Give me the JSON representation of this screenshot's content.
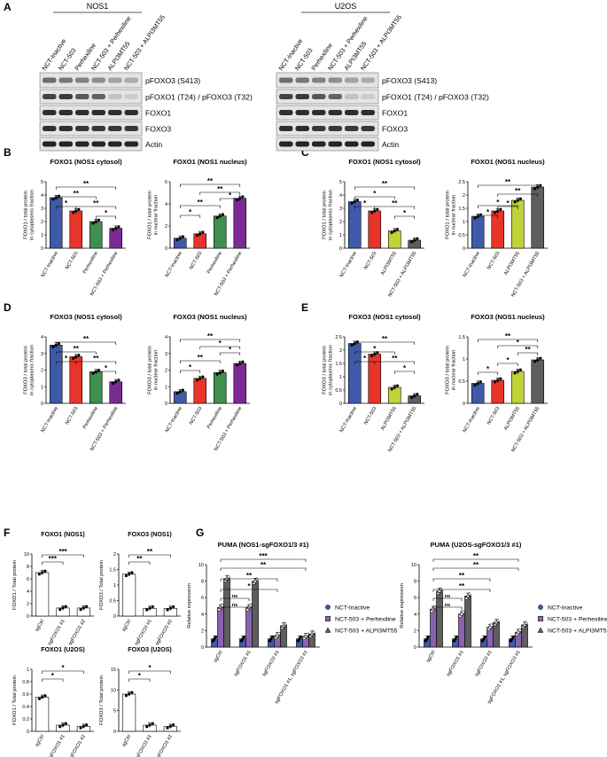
{
  "colors": {
    "blue": "#3f5aa9",
    "red": "#e8342a",
    "green": "#3f8f4f",
    "purple": "#7a2b93",
    "lime": "#c2d23a",
    "grey": "#5e5e5e",
    "lilac": "#8a63b0",
    "white": "#ffffff"
  },
  "panel_letters": {
    "A": "A",
    "B": "B",
    "C": "C",
    "D": "D",
    "E": "E",
    "F": "F",
    "G": "G"
  },
  "blots": {
    "row_labels": [
      "pFOXO3 (S413)",
      "pFOXO1 (T24) / pFOXO3 (T32)",
      "FOXO1",
      "FOXO3",
      "Actin"
    ],
    "left": {
      "header": "NOS1",
      "lanes": [
        "NCT-Inactive",
        "NCT-503",
        "Perhexiline",
        "NCT-503 + Perhexiline",
        "ALPI3MT55",
        "NCT-503 + ALPI3MT55"
      ]
    },
    "right": {
      "header": "U2OS",
      "lanes": [
        "NCT-Inactive",
        "NCT-503",
        "Perhexiline",
        "NCT-503 + Perhexiline",
        "ALPI3MT55",
        "NCT-503 + ALPI3MT55"
      ]
    }
  },
  "chart_data": [
    {
      "type": "bar",
      "panel": "B",
      "title": "FOXO1 (NOS1 cytosol)",
      "ylabel": "FOXO1 / total protein in cytoplasmic fraction",
      "categories": [
        "NCT-Inactive",
        "NCT-503",
        "Perhexiline",
        "NCT-503 + Perhexiline"
      ],
      "values": [
        3.8,
        2.8,
        2.0,
        1.5
      ],
      "ylim": [
        0,
        5
      ],
      "ticks": [
        0,
        1,
        2,
        3,
        4,
        5
      ],
      "sig": [
        "*",
        "**",
        "**",
        "**",
        "*"
      ]
    },
    {
      "type": "bar",
      "panel": "B",
      "title": "FOXO1 (NOS1 nucleus)",
      "ylabel": "FOXO1 / total protein in nuclear fraction",
      "categories": [
        "NCT-Inactive",
        "NCT-503",
        "Perhexiline",
        "NCT-503 + Perhexiline"
      ],
      "values": [
        0.9,
        1.3,
        2.9,
        4.5
      ],
      "ylim": [
        0,
        6
      ],
      "ticks": [
        0,
        2,
        4,
        6
      ],
      "sig": [
        "*",
        "**",
        "*",
        "**",
        "**"
      ]
    },
    {
      "type": "bar",
      "panel": "C",
      "title": "FOXO1 (NOS1 cytosol)",
      "ylabel": "FOXO1 / total protein in cytoplasmic fraction",
      "categories": [
        "NCT-Inactive",
        "NCT-503",
        "ALPI3MT55",
        "NCT-503 + ALPI3MT55"
      ],
      "values": [
        3.5,
        2.8,
        1.3,
        0.6
      ],
      "ylim": [
        0,
        5
      ],
      "ticks": [
        0,
        1,
        2,
        3,
        4,
        5
      ],
      "sig": [
        "*",
        "*",
        "*",
        "**",
        "**"
      ]
    },
    {
      "type": "bar",
      "panel": "C",
      "title": "FOXO1 (NOS1 nucleus)",
      "ylabel": "FOXO1 / total protein in nuclear fraction",
      "categories": [
        "NCT-Inactive",
        "NCT-503",
        "ALPI3MT55",
        "NCT-503 + ALPI3MT55"
      ],
      "values": [
        1.2,
        1.4,
        1.8,
        2.3
      ],
      "ylim": [
        0,
        2.5
      ],
      "ticks": [
        0,
        0.5,
        1.0,
        1.5,
        2.0,
        2.5
      ],
      "sig": [
        "*",
        "*",
        "**",
        "*",
        "**"
      ]
    },
    {
      "type": "bar",
      "panel": "D",
      "title": "FOXO3 (NOS1 cytosol)",
      "ylabel": "FOXO3 / total protein in cytoplasmic fraction",
      "categories": [
        "NCT-Inactive",
        "NCT-503",
        "Perhexiline",
        "NCT-503 + Perhexiline"
      ],
      "values": [
        3.5,
        2.8,
        1.9,
        1.3
      ],
      "ylim": [
        0,
        4
      ],
      "ticks": [
        0,
        1,
        2,
        3,
        4
      ],
      "sig": [
        "*",
        "**",
        "**",
        "*",
        "**"
      ]
    },
    {
      "type": "bar",
      "panel": "D",
      "title": "FOXO3 (NOS1 nucleus)",
      "ylabel": "FOXO3 / total protein in nuclear fraction",
      "categories": [
        "NCT-Inactive",
        "NCT-503",
        "Perhexiline",
        "NCT-503 + Perhexiline"
      ],
      "values": [
        0.7,
        1.5,
        1.85,
        2.4
      ],
      "ylim": [
        0,
        4
      ],
      "ticks": [
        0,
        1,
        2,
        3,
        4
      ],
      "sig": [
        "*",
        "**",
        "*",
        "*",
        "**"
      ]
    },
    {
      "type": "bar",
      "panel": "E",
      "title": "FOXO3 (NOS1 cytosol)",
      "ylabel": "FOXO3 / total protein in cytoplasmic fraction",
      "categories": [
        "NCT-Inactive",
        "NCT-503",
        "ALPI3MT55",
        "NCT-503 + ALPI3MT55"
      ],
      "values": [
        2.25,
        1.85,
        0.6,
        0.28
      ],
      "ylim": [
        0,
        2.5
      ],
      "ticks": [
        0,
        0.5,
        1.0,
        1.5,
        2.0,
        2.5
      ],
      "sig": [
        "*",
        "*",
        "*",
        "**",
        "**"
      ]
    },
    {
      "type": "bar",
      "panel": "E",
      "title": "FOXO3 (NOS1 nucleus)",
      "ylabel": "FOXO3 / total protein in nuclear fraction",
      "categories": [
        "NCT-Inactive",
        "NCT-503",
        "ALPI3MT55",
        "NCT-503 + ALPI3MT55"
      ],
      "values": [
        0.45,
        0.52,
        0.72,
        0.98
      ],
      "ylim": [
        0,
        1.5
      ],
      "ticks": [
        0,
        0.5,
        1.0,
        1.5
      ],
      "sig": [
        "*",
        "*",
        "**",
        "*",
        "**"
      ]
    },
    {
      "type": "bar",
      "panel": "F",
      "title": "FOXO1 (NOS1)",
      "ylabel": "FOXO1 / Total protein",
      "categories": [
        "sgCtrl",
        "sgFOXO1 #1",
        "sgFOXO1 #2"
      ],
      "values": [
        7.0,
        1.3,
        1.3
      ],
      "ylim": [
        0,
        10
      ],
      "ticks": [
        0,
        2,
        4,
        6,
        8,
        10
      ],
      "sig": [
        "***",
        "***"
      ]
    },
    {
      "type": "bar",
      "panel": "F",
      "title": "FOXO3 (NOS1)",
      "ylabel": "FOXO3 / Total protein",
      "categories": [
        "sgCtrl",
        "sgFOXO3 #1",
        "sgFOXO3 #2"
      ],
      "values": [
        1.35,
        0.25,
        0.25
      ],
      "ylim": [
        0,
        2.0
      ],
      "ticks": [
        0,
        0.5,
        1.0,
        1.5,
        2.0
      ],
      "sig": [
        "**",
        "**"
      ]
    },
    {
      "type": "bar",
      "panel": "F",
      "title": "FOXO1 (U2OS)",
      "ylabel": "FOXO1 / Total protein",
      "categories": [
        "sgCtrl",
        "sgFOXO1 #1",
        "sgFOXO1 #2"
      ],
      "values": [
        0.55,
        0.1,
        0.08
      ],
      "ylim": [
        0,
        1.0
      ],
      "ticks": [
        0,
        0.2,
        0.4,
        0.6,
        0.8,
        1.0
      ],
      "sig": [
        "*",
        "*"
      ]
    },
    {
      "type": "bar",
      "panel": "F",
      "title": "FOXO3 (U2OS)",
      "ylabel": "FOXO3 / Total protein",
      "categories": [
        "sgCtrl",
        "sgFOXO3 #1",
        "sgFOXO3 #2"
      ],
      "values": [
        9.0,
        1.5,
        1.2
      ],
      "ylim": [
        0,
        15
      ],
      "ticks": [
        0,
        5,
        10,
        15
      ],
      "sig": [
        "*",
        "*"
      ]
    },
    {
      "type": "bar",
      "panel": "G",
      "title": "PUMA (NOS1-sgFOXO1/3 #1)",
      "ylabel": "Relative expression",
      "categories": [
        "sgCtrl",
        "sgFOXO1 #1",
        "sgFOXO3 #1",
        "sgFOXO1 #1, sgFOXO3 #1"
      ],
      "series": [
        {
          "name": "NCT-Inactive",
          "values": [
            1.0,
            1.0,
            1.0,
            1.0
          ]
        },
        {
          "name": "NCT-503 + Perhexiline",
          "values": [
            4.8,
            4.8,
            1.4,
            1.3
          ]
        },
        {
          "name": "NCT-503 + ALPI3MT55",
          "values": [
            8.3,
            8.0,
            2.6,
            1.6
          ]
        }
      ],
      "ylim": [
        0,
        10
      ],
      "ticks": [
        0,
        2,
        4,
        6,
        8,
        10
      ],
      "sig": [
        "ns",
        "ns",
        "*",
        "**",
        "**",
        "***"
      ]
    },
    {
      "type": "bar",
      "panel": "G",
      "title": "PUMA (U2OS-sgFOXO1/3 #1)",
      "ylabel": "Relative expression",
      "categories": [
        "sgCtrl",
        "sgFOXO1 #1",
        "sgFOXO3 #1",
        "sgFOXO1 #1, sgFOXO3 #1"
      ],
      "series": [
        {
          "name": "NCT-Inactive",
          "values": [
            1.0,
            1.0,
            1.0,
            1.0
          ]
        },
        {
          "name": "NCT-503 + Perhexiline",
          "values": [
            4.6,
            4.0,
            2.4,
            1.8
          ]
        },
        {
          "name": "NCT-503 + ALPI3MT55",
          "values": [
            6.8,
            6.2,
            3.0,
            2.7
          ]
        }
      ],
      "ylim": [
        0,
        10
      ],
      "ticks": [
        0,
        2,
        4,
        6,
        8,
        10
      ],
      "sig": [
        "ns",
        "ns",
        "**",
        "**",
        "**",
        "**"
      ]
    }
  ]
}
